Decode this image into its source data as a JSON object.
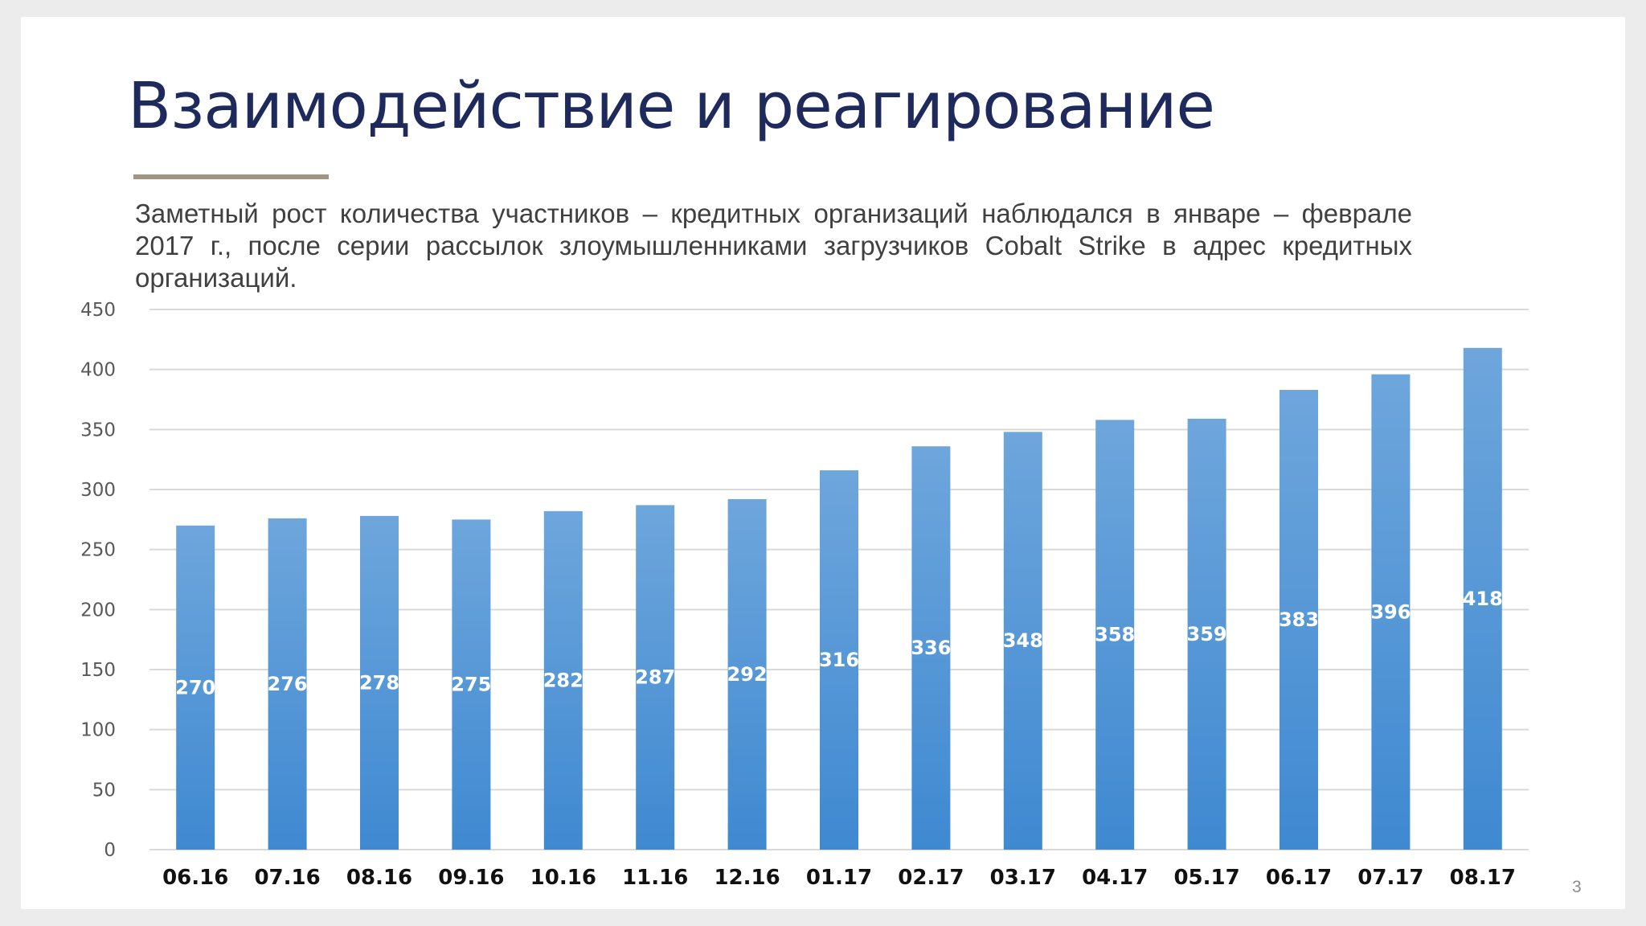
{
  "slide": {
    "title": "Взаимодействие и реагирование",
    "subtitle": "Заметный рост количества участников – кредитных организаций наблюдался в январе – феврале 2017 г., после серии рассылок злоумышленниками загрузчиков Cobalt Strike в адрес кредитных организаций.",
    "page_number": "3"
  },
  "colors": {
    "title": "#1f2a5c",
    "rule": "#a39680",
    "bar_top": "#6ea6dc",
    "bar_bottom": "#3f89d1",
    "grid": "#d9d9d9"
  },
  "chart_data": {
    "type": "bar",
    "title": "",
    "xlabel": "",
    "ylabel": "",
    "categories": [
      "06.16",
      "07.16",
      "08.16",
      "09.16",
      "10.16",
      "11.16",
      "12.16",
      "01.17",
      "02.17",
      "03.17",
      "04.17",
      "05.17",
      "06.17",
      "07.17",
      "08.17"
    ],
    "values": [
      270,
      276,
      278,
      275,
      282,
      287,
      292,
      316,
      336,
      348,
      358,
      359,
      383,
      396,
      418
    ],
    "data_labels": [
      "270",
      "276",
      "278",
      "275",
      "282",
      "287",
      "292",
      "316",
      "336",
      "348",
      "358",
      "359",
      "383",
      "396",
      "418"
    ],
    "ylim": [
      0,
      450
    ],
    "yticks": [
      0,
      50,
      100,
      150,
      200,
      250,
      300,
      350,
      400,
      450
    ],
    "ytick_labels": [
      "0",
      "50",
      "100",
      "150",
      "200",
      "250",
      "300",
      "350",
      "400",
      "450"
    ],
    "grid": true,
    "legend": "none"
  }
}
